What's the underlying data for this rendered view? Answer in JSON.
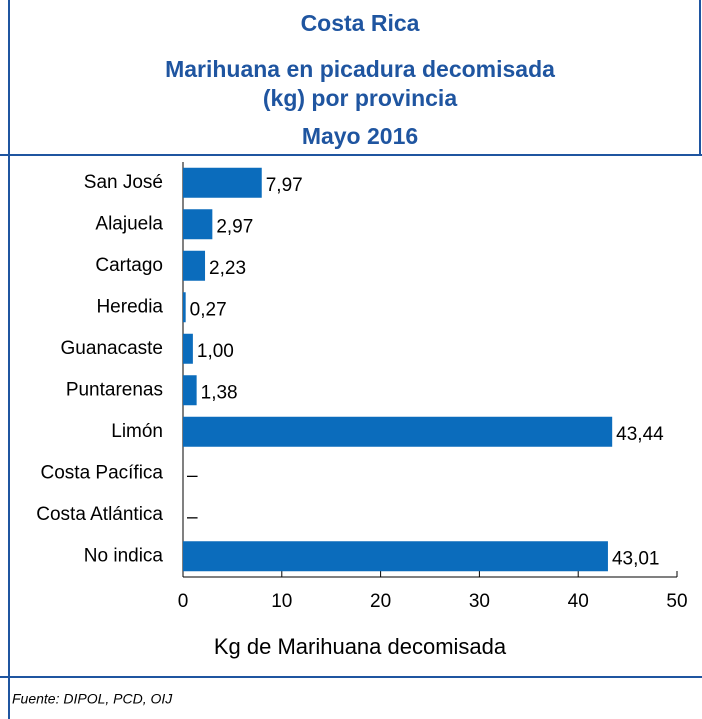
{
  "chart_data": {
    "type": "bar",
    "orientation": "horizontal",
    "title": "Costa Rica",
    "subtitle": "Marihuana en picadura decomisada",
    "subtitle2": "(kg) por provincia",
    "period": "Mayo 2016",
    "categories": [
      "San José",
      "Alajuela",
      "Cartago",
      "Heredia",
      "Guanacaste",
      "Puntarenas",
      "Limón",
      "Costa Pacífica",
      "Costa Atlántica",
      "No indica"
    ],
    "values": [
      7.97,
      2.97,
      2.23,
      0.27,
      1.0,
      1.38,
      43.44,
      0,
      0,
      43.01
    ],
    "value_labels": [
      "7,97",
      "2,97",
      "2,23",
      "0,27",
      "1,00",
      "1,38",
      "43,44",
      "–",
      "–",
      "43,01"
    ],
    "color": "#0b6cbc",
    "xlim": [
      0,
      50
    ],
    "xticks": [
      0,
      10,
      20,
      30,
      40,
      50
    ],
    "xlabel": "Kg de Marihuana decomisada",
    "source": "Fuente: DIPOL, PCD, OIJ"
  }
}
